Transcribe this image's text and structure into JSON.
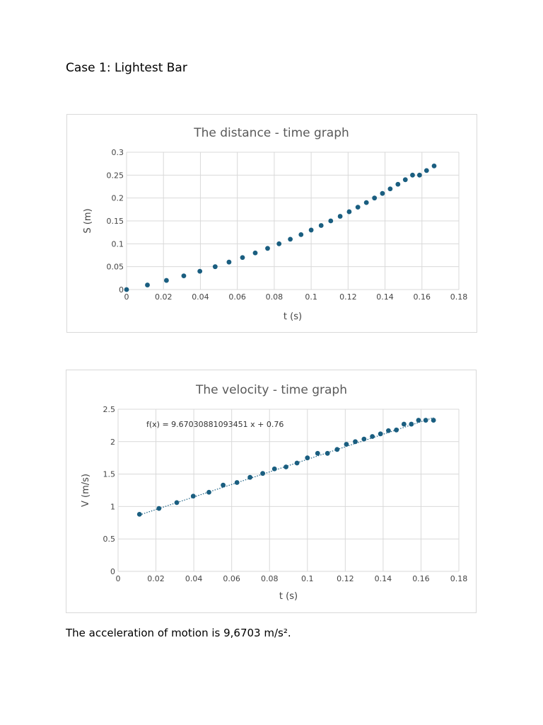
{
  "heading": "Case 1: Lightest Bar",
  "conclusion": "The acceleration of motion is 9,6703 m/s².",
  "colors": {
    "marker": "#1a5e80",
    "grid": "#d9d9d9",
    "trend": "#1a5e80"
  },
  "chart_data": [
    {
      "type": "scatter",
      "title": "The distance - time graph",
      "xlabel": "t (s)",
      "ylabel": "S (m)",
      "xlim": [
        0,
        0.18
      ],
      "ylim": [
        0,
        0.3
      ],
      "x_ticks": [
        "0",
        "0.02",
        "0.04",
        "0.06",
        "0.08",
        "0.1",
        "0.12",
        "0.14",
        "0.16",
        "0.18"
      ],
      "y_ticks": [
        "0",
        "0.05",
        "0.1",
        "0.15",
        "0.2",
        "0.25",
        "0.3"
      ],
      "grid": true,
      "series": [
        {
          "name": "S",
          "x": [
            0,
            0.0113,
            0.0216,
            0.031,
            0.0397,
            0.048,
            0.0555,
            0.0628,
            0.0697,
            0.0764,
            0.0826,
            0.0887,
            0.0945,
            0.1,
            0.1054,
            0.1106,
            0.1157,
            0.1206,
            0.1253,
            0.1299,
            0.1343,
            0.1386,
            0.1428,
            0.147,
            0.151,
            0.1549,
            0.1587,
            0.1625,
            0.1666
          ],
          "y": [
            0,
            0.01,
            0.02,
            0.03,
            0.04,
            0.05,
            0.06,
            0.07,
            0.08,
            0.09,
            0.1,
            0.11,
            0.12,
            0.13,
            0.14,
            0.15,
            0.16,
            0.17,
            0.18,
            0.19,
            0.2,
            0.21,
            0.22,
            0.23,
            0.24,
            0.25,
            0.25,
            0.26,
            0.27
          ]
        }
      ]
    },
    {
      "type": "scatter",
      "title": "The velocity - time graph",
      "xlabel": "t (s)",
      "ylabel": "V (m/s)",
      "xlim": [
        0,
        0.18
      ],
      "ylim": [
        0,
        2.5
      ],
      "x_ticks": [
        "0",
        "0.02",
        "0.04",
        "0.06",
        "0.08",
        "0.1",
        "0.12",
        "0.14",
        "0.16",
        "0.18"
      ],
      "y_ticks": [
        "0",
        "0.5",
        "1",
        "1.5",
        "2",
        "2.5"
      ],
      "grid": true,
      "trendline": {
        "type": "linear",
        "slope": 9.67030881093451,
        "intercept": 0.76,
        "equation": "f(x) = 9.67030881093451 x + 0.76"
      },
      "series": [
        {
          "name": "V",
          "x": [
            0.0113,
            0.0216,
            0.031,
            0.0397,
            0.048,
            0.0555,
            0.0628,
            0.0697,
            0.0764,
            0.0826,
            0.0887,
            0.0945,
            0.1,
            0.1054,
            0.1106,
            0.1157,
            0.1206,
            0.1253,
            0.1299,
            0.1343,
            0.1386,
            0.1428,
            0.147,
            0.151,
            0.1549,
            0.1587,
            0.1625,
            0.1666
          ],
          "y": [
            0.88,
            0.97,
            1.06,
            1.16,
            1.22,
            1.33,
            1.37,
            1.45,
            1.51,
            1.58,
            1.61,
            1.67,
            1.75,
            1.82,
            1.82,
            1.88,
            1.96,
            2.0,
            2.04,
            2.08,
            2.12,
            2.17,
            2.18,
            2.27,
            2.27,
            2.33,
            2.33,
            2.33
          ]
        }
      ]
    }
  ]
}
